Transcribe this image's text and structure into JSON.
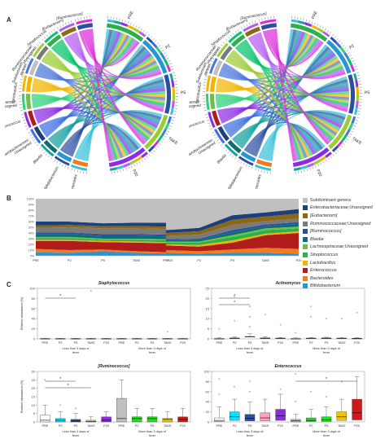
{
  "panels": {
    "a": "A",
    "b": "B",
    "c": "C"
  },
  "chord_labels_left": [
    "Bacteroides",
    "Bifidobacterium",
    "Blautia",
    "Enterobacteriaceae;\nUnassigned",
    "Enterococcus",
    "Lachnospiraceae;\nUnassigned",
    "Lactobacillus",
    "Subdominant\ngenera",
    "Ruminococcaceae;\nUnassigned",
    "Streptococcus",
    "[Eubacterium]",
    "[Ruminococcus]"
  ],
  "chord_labels_right": [
    "PRE",
    "P2",
    "P5",
    "TAKE",
    "P20"
  ],
  "colors": {
    "Subdominant genera": "#c0c0c0",
    "Enterobacteriaceae;Unassigned": "#1f3f7a",
    "[Eubacterium]": "#8b6914",
    "Ruminococcaceae;Unassigned": "#7a7a7a",
    "[Ruminococcus]": "#2a4fa0",
    "Blautia": "#0e6e6e",
    "Lachnospiraceae;Unassigned": "#6cc04a",
    "Streptococcus": "#2bb04a",
    "Lactobacillus": "#f2b400",
    "Enterococcus": "#b01c1c",
    "Bacteroides": "#f07c1e",
    "Bifidobacterium": "#2596d6"
  },
  "legend": [
    "Subdominant genera",
    "Enterobacteriaceae;Unassigned",
    "[Eubacterium]",
    "Ruminococcaceae;Unassigned",
    "[Ruminococcus]",
    "Blautia",
    "Lachnospiraceae;Unassigned",
    "Streptococcus",
    "Lactobacillus",
    "Enterococcus",
    "Bacteroides",
    "Bifidobacterium"
  ],
  "chart_data": [
    {
      "type": "area",
      "panel": "B-left",
      "x": [
        "PRE",
        "P2",
        "P5",
        "TAKE",
        "P20"
      ],
      "ylim": [
        0,
        100
      ],
      "yticks": [
        "0%",
        "10%",
        "20%",
        "30%",
        "40%",
        "50%",
        "60%",
        "70%",
        "80%",
        "90%",
        "100%"
      ],
      "series": [
        {
          "name": "Bifidobacterium",
          "values": [
            6,
            5,
            8,
            5,
            4
          ]
        },
        {
          "name": "Bacteroides",
          "values": [
            6,
            5,
            3,
            3,
            2
          ]
        },
        {
          "name": "Enterococcus",
          "values": [
            14,
            16,
            13,
            15,
            16
          ]
        },
        {
          "name": "Lactobacillus",
          "values": [
            2,
            2,
            2,
            2,
            2
          ]
        },
        {
          "name": "Streptococcus",
          "values": [
            3,
            3,
            2,
            3,
            3
          ]
        },
        {
          "name": "Lachnospiraceae;Unassigned",
          "values": [
            2,
            2,
            2,
            2,
            2
          ]
        },
        {
          "name": "Blautia",
          "values": [
            5,
            5,
            5,
            5,
            5
          ]
        },
        {
          "name": "[Ruminococcus]",
          "values": [
            3,
            3,
            3,
            3,
            3
          ]
        },
        {
          "name": "Ruminococcaceae;Unassigned",
          "values": [
            8,
            9,
            10,
            10,
            10
          ]
        },
        {
          "name": "[Eubacterium]",
          "values": [
            4,
            4,
            4,
            4,
            4
          ]
        },
        {
          "name": "Enterobacteriaceae;Unassigned",
          "values": [
            7,
            6,
            5,
            6,
            7
          ]
        },
        {
          "name": "Subdominant genera",
          "values": [
            40,
            40,
            43,
            42,
            42
          ]
        }
      ]
    },
    {
      "type": "area",
      "panel": "B-right",
      "x": [
        "PRE",
        "P2",
        "P5",
        "TAKE",
        "P20"
      ],
      "ylim": [
        0,
        100
      ],
      "series": [
        {
          "name": "Bifidobacterium",
          "values": [
            5,
            4,
            5,
            5,
            4
          ]
        },
        {
          "name": "Bacteroides",
          "values": [
            5,
            4,
            6,
            9,
            8
          ]
        },
        {
          "name": "Enterococcus",
          "values": [
            8,
            8,
            12,
            22,
            28
          ]
        },
        {
          "name": "Lactobacillus",
          "values": [
            2,
            3,
            4,
            3,
            3
          ]
        },
        {
          "name": "Streptococcus",
          "values": [
            3,
            4,
            6,
            6,
            5
          ]
        },
        {
          "name": "Lachnospiraceae;Unassigned",
          "values": [
            2,
            2,
            3,
            3,
            3
          ]
        },
        {
          "name": "Blautia",
          "values": [
            2,
            3,
            5,
            4,
            5
          ]
        },
        {
          "name": "[Ruminococcus]",
          "values": [
            2,
            2,
            4,
            3,
            3
          ]
        },
        {
          "name": "Ruminococcaceae;Unassigned",
          "values": [
            6,
            7,
            9,
            6,
            6
          ]
        },
        {
          "name": "[Eubacterium]",
          "values": [
            5,
            6,
            9,
            8,
            9
          ]
        },
        {
          "name": "Enterobacteriaceae;Unassigned",
          "values": [
            5,
            6,
            8,
            7,
            8
          ]
        },
        {
          "name": "Subdominant genera",
          "values": [
            55,
            51,
            29,
            24,
            18
          ]
        }
      ]
    },
    {
      "type": "box",
      "title": "Staphylococcus",
      "ylabel": "Relative abundance (%)",
      "ylim": [
        0,
        100
      ],
      "yticks": [
        0,
        20,
        40,
        60,
        80,
        100
      ],
      "categories": [
        "PRE",
        "P2",
        "P5",
        "TAKE",
        "P20",
        "PRE",
        "P2",
        "P5",
        "TAKE",
        "P20"
      ],
      "groups": [
        "Less than 3 days of fever",
        "More than 3 days of fever"
      ],
      "medians": [
        0,
        0,
        0,
        0,
        0,
        0,
        0,
        0,
        0,
        0
      ],
      "upper": [
        1,
        1,
        1,
        1,
        1,
        1,
        1,
        1,
        1,
        1
      ],
      "outliers": [
        [],
        [],
        [],
        [
          95
        ],
        [],
        [],
        [],
        [],
        [
          14
        ],
        []
      ],
      "significance": [
        {
          "from": 0,
          "to": 2,
          "label": "*"
        }
      ]
    },
    {
      "type": "box",
      "title": "Actinomyces",
      "ylim": [
        0,
        25
      ],
      "yticks": [
        0,
        5,
        10,
        15,
        20,
        25
      ],
      "categories": [
        "PRE",
        "P2",
        "P5",
        "TAKE",
        "P20",
        "PRE",
        "P2",
        "P5",
        "TAKE",
        "P20"
      ],
      "medians": [
        0,
        0.3,
        1,
        0.3,
        0.2,
        0,
        0.2,
        0.3,
        0.2,
        0.1
      ],
      "upper": [
        0.5,
        1,
        2.5,
        1,
        0.7,
        0.5,
        0.7,
        0.8,
        0.6,
        0.6
      ],
      "outliers": [
        [
          5
        ],
        [
          9,
          21
        ],
        [
          16,
          11,
          6
        ],
        [
          12
        ],
        [
          7
        ],
        [
          3
        ],
        [
          16,
          11
        ],
        [
          10
        ],
        [
          10
        ],
        [
          13
        ]
      ],
      "significance": [
        {
          "from": 0,
          "to": 2,
          "label": "*"
        },
        {
          "from": 0,
          "to": 2,
          "label": "*"
        }
      ]
    },
    {
      "type": "box",
      "title": "[Ruminococcus]",
      "ylabel": "Relative abundance (%)",
      "ylim": [
        0,
        30
      ],
      "yticks": [
        0,
        5,
        10,
        15,
        20,
        25,
        30
      ],
      "categories": [
        "PRE",
        "P2",
        "P5",
        "TAKE",
        "P20",
        "PRE",
        "P2",
        "P5",
        "TAKE",
        "P20"
      ],
      "medians": [
        1,
        1,
        0.5,
        0.2,
        1,
        2,
        2,
        2,
        1.5,
        1.5
      ],
      "q1": [
        0,
        0,
        0,
        0,
        0,
        0,
        0,
        0,
        0,
        0
      ],
      "q3": [
        4,
        2,
        1.5,
        1,
        3,
        14,
        3,
        3,
        2,
        3
      ],
      "upper": [
        10,
        6,
        5,
        3,
        6,
        25,
        8,
        8,
        6,
        8
      ],
      "outliers": [
        [
          25
        ],
        [
          10
        ],
        [
          8
        ],
        [],
        [],
        [],
        [],
        [],
        [],
        []
      ],
      "colors": [
        "#ffffff",
        "#00e5ff",
        "#2a4fa0",
        "#c0c0c0",
        "#8b2be2",
        "#c0c0c0",
        "#22dd22",
        "#22dd22",
        "#f2c400",
        "#d01818"
      ],
      "significance": [
        {
          "from": 0,
          "to": 2,
          "label": "*"
        },
        {
          "from": 0,
          "to": 3,
          "label": "*"
        }
      ]
    },
    {
      "type": "box",
      "title": "Enterococcus",
      "ylim": [
        0,
        100
      ],
      "yticks": [
        0,
        20,
        40,
        60,
        80,
        100
      ],
      "categories": [
        "PRE",
        "P2",
        "P5",
        "TAKE",
        "P20",
        "PRE",
        "P2",
        "P5",
        "TAKE",
        "P20"
      ],
      "medians": [
        3,
        10,
        7,
        8,
        12,
        2,
        3,
        4,
        10,
        18
      ],
      "q1": [
        1,
        3,
        2,
        2,
        3,
        0,
        1,
        1,
        3,
        4
      ],
      "q3": [
        8,
        20,
        15,
        18,
        25,
        5,
        8,
        10,
        20,
        45
      ],
      "upper": [
        30,
        45,
        40,
        45,
        55,
        15,
        25,
        30,
        45,
        90
      ],
      "outliers": [
        [
          85,
          55
        ],
        [
          70
        ],
        [
          80,
          60
        ],
        [],
        [
          65
        ],
        [
          95,
          40
        ],
        [
          60
        ],
        [
          50
        ],
        [
          80
        ],
        []
      ],
      "colors": [
        "#ffffff",
        "#00e5ff",
        "#2a4fa0",
        "#ff9ec8",
        "#8b2be2",
        "#c0c0c0",
        "#22dd22",
        "#22dd22",
        "#f2c400",
        "#d01818"
      ],
      "significance": [
        {
          "from": 5,
          "to": 9,
          "label": "*"
        }
      ]
    }
  ],
  "box_group_labels": [
    "Less than 3 days of",
    "fever",
    "More than 3 days of",
    "fever"
  ]
}
